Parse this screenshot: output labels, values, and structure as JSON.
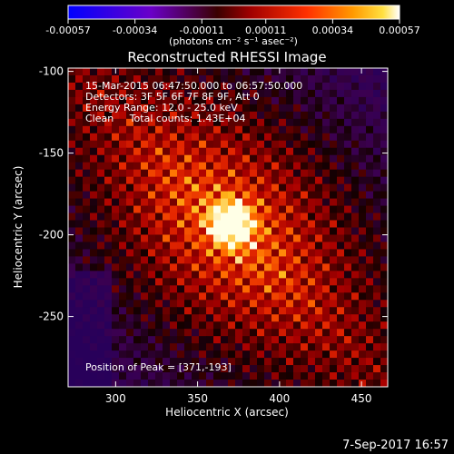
{
  "chart_data": {
    "type": "heatmap",
    "title": "Reconstructed RHESSI Image",
    "xlabel": "Heliocentric X (arcsec)",
    "ylabel": "Heliocentric Y (arcsec)",
    "xlim": [
      271,
      466
    ],
    "ylim": [
      -293,
      -98
    ],
    "xticks": [
      300,
      350,
      400,
      450
    ],
    "yticks": [
      -100,
      -150,
      -200,
      -250
    ],
    "colorbar": {
      "ticks": [
        -0.00057,
        -0.00034,
        -0.00011,
        0.00011,
        0.00034,
        0.00057
      ],
      "tick_labels": [
        "-0.00057",
        "-0.00034",
        "-0.00011",
        "0.00011",
        "0.00034",
        "0.00057"
      ],
      "units_label": "(photons cm⁻² s⁻¹ asec⁻²)"
    },
    "annotations": [
      "15-Mar-2015 06:47:50.000 to 06:57:50.000",
      "Detectors: 3F 5F 6F 7F 8F 9F, Att 0",
      "Energy Range: 12.0 - 25.0 keV",
      "Clean     Total counts: 1.43E+04"
    ],
    "peak_label": "Position of Peak = [371,-193]",
    "peak": {
      "x": 371,
      "y": -193
    }
  },
  "footer": {
    "date": "7-Sep-2017 16:57"
  }
}
